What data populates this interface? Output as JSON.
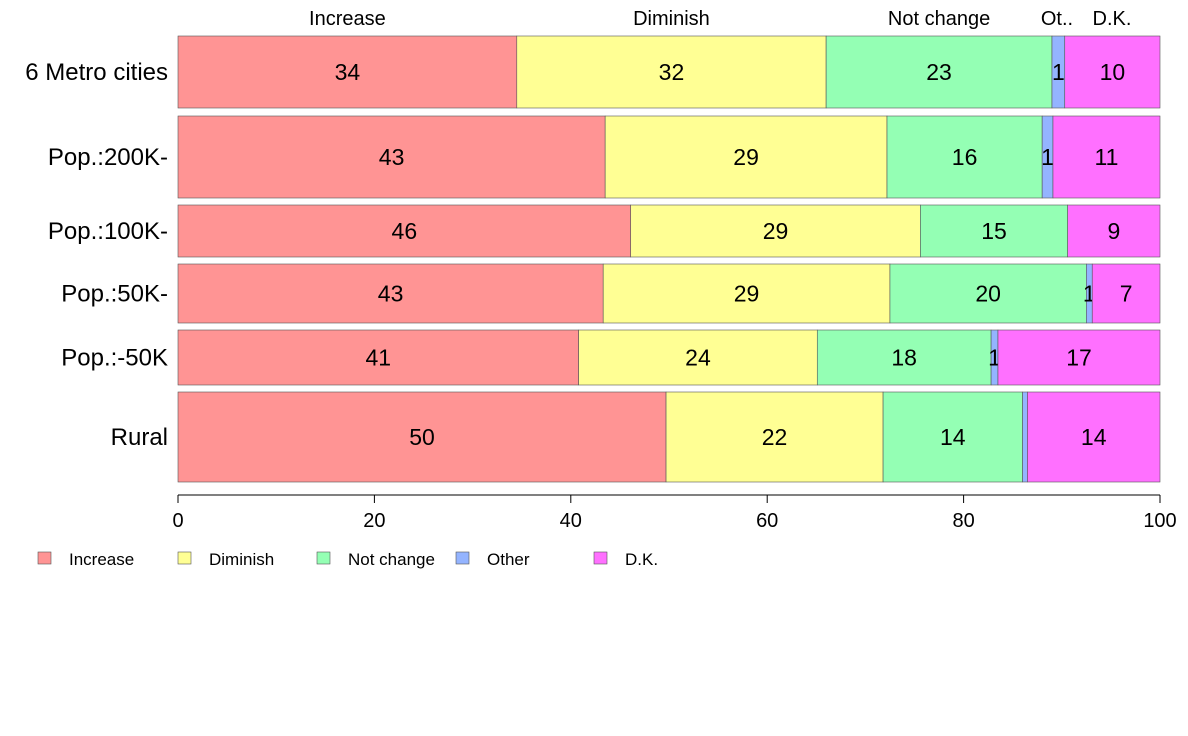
{
  "chart_data": {
    "type": "bar",
    "orientation": "horizontal",
    "stacked": true,
    "title": "",
    "xlabel": "",
    "ylabel": "",
    "xlim": [
      0,
      100
    ],
    "xticks": [
      0,
      20,
      40,
      60,
      80,
      100
    ],
    "categories": [
      "6 Metro cities",
      "Pop.:200K-",
      "Pop.:100K-",
      "Pop.:50K-",
      "Pop.:-50K",
      "Rural"
    ],
    "column_headers": [
      "Increase",
      "Diminish",
      "Not change",
      "Ot..",
      "D.K."
    ],
    "series": [
      {
        "name": "Increase",
        "color": "#ff9494",
        "values": [
          34.5,
          43.5,
          46.1,
          43.3,
          40.8,
          49.7
        ],
        "labels": [
          "34",
          "43",
          "46",
          "43",
          "41",
          "50"
        ]
      },
      {
        "name": "Diminish",
        "color": "#ffff94",
        "values": [
          31.5,
          28.7,
          29.5,
          29.2,
          24.3,
          22.1
        ],
        "labels": [
          "32",
          "29",
          "29",
          "29",
          "24",
          "22"
        ]
      },
      {
        "name": "Not change",
        "color": "#94ffb4",
        "values": [
          23.0,
          15.8,
          15.0,
          20.0,
          17.7,
          14.2
        ],
        "labels": [
          "23",
          "16",
          "15",
          "20",
          "18",
          "14"
        ]
      },
      {
        "name": "Other",
        "color": "#94b4ff",
        "values": [
          1.3,
          1.1,
          0.0,
          0.6,
          0.7,
          0.5
        ],
        "labels": [
          "1",
          "1",
          "",
          "1",
          "1",
          ""
        ]
      },
      {
        "name": "D.K.",
        "color": "#ff70ff",
        "values": [
          9.7,
          10.9,
          9.4,
          6.9,
          16.5,
          13.5
        ],
        "labels": [
          "10",
          "11",
          "9",
          "7",
          "17",
          "14"
        ]
      }
    ],
    "legend": {
      "placement": "bottom-left",
      "entries": [
        "Increase",
        "Diminish",
        "Not change",
        "Other",
        "D.K."
      ]
    },
    "grid": false
  }
}
